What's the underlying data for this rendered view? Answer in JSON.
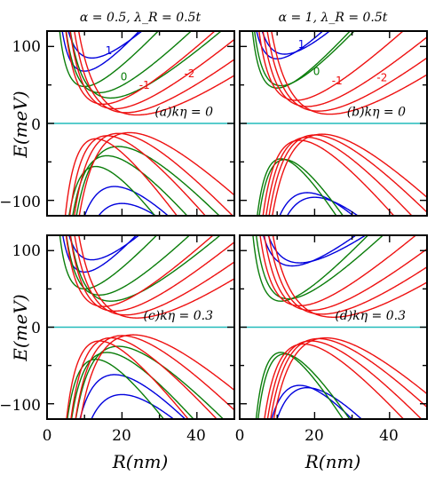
{
  "colors": {
    "blue": "#0000dd",
    "green": "#0a7d0a",
    "red": "#ee1111",
    "cyan": "#22bbbb"
  },
  "axes": {
    "ylabel": "E(meV)",
    "xlabel": "R(nm)",
    "xticks": [
      "0",
      "20",
      "40"
    ],
    "yticks": [
      "100",
      "0",
      "−100"
    ]
  },
  "chart_data": [
    {
      "type": "line",
      "title": "α = 0.5, λ_R = 0.5t",
      "panel_label": "(a)kη = 0",
      "xlim": [
        0,
        50
      ],
      "ylim": [
        -120,
        120
      ],
      "annotations": [
        {
          "text": "1",
          "color": "blue",
          "x": 16.5,
          "y": 90
        },
        {
          "text": "0",
          "color": "green",
          "x": 20.5,
          "y": 56
        },
        {
          "text": "-1",
          "color": "red",
          "x": 26,
          "y": 45
        },
        {
          "text": "-2",
          "color": "red",
          "x": 38,
          "y": 60
        }
      ],
      "series": [
        {
          "color": "blue",
          "x0": 10,
          "min": 68,
          "scale": 5.0,
          "kind": "upper"
        },
        {
          "color": "blue",
          "x0": 12,
          "min": 85,
          "scale": 5.0,
          "kind": "upper"
        },
        {
          "color": "green",
          "x0": 10,
          "min": 48,
          "scale": 4.6,
          "kind": "upper"
        },
        {
          "color": "green",
          "x0": 14,
          "min": 40,
          "scale": 6.0,
          "kind": "upper"
        },
        {
          "color": "green",
          "x0": 17,
          "min": 33,
          "scale": 6.6,
          "kind": "upper"
        },
        {
          "color": "red",
          "x0": 15,
          "min": 25,
          "scale": 6.0,
          "kind": "upper"
        },
        {
          "color": "red",
          "x0": 18,
          "min": 19,
          "scale": 6.6,
          "kind": "upper"
        },
        {
          "color": "red",
          "x0": 21,
          "min": 14,
          "scale": 7.2,
          "kind": "upper"
        },
        {
          "color": "red",
          "x0": 24,
          "min": 11,
          "scale": 7.6,
          "kind": "upper"
        },
        {
          "color": "blue",
          "x0": 18,
          "min": -82,
          "scale": 9.0,
          "kind": "lower"
        },
        {
          "color": "blue",
          "x0": 20,
          "min": -104,
          "scale": 9.5,
          "kind": "lower"
        },
        {
          "color": "green",
          "x0": 13,
          "min": -56,
          "scale": 8.0,
          "kind": "lower"
        },
        {
          "color": "green",
          "x0": 16,
          "min": -42,
          "scale": 8.5,
          "kind": "lower"
        },
        {
          "color": "green",
          "x0": 19,
          "min": -30,
          "scale": 9.0,
          "kind": "lower"
        },
        {
          "color": "red",
          "x0": 13,
          "min": -20,
          "scale": 8.0,
          "kind": "lower"
        },
        {
          "color": "red",
          "x0": 16,
          "min": -16,
          "scale": 8.5,
          "kind": "lower"
        },
        {
          "color": "red",
          "x0": 19,
          "min": -13,
          "scale": 9.0,
          "kind": "lower"
        },
        {
          "color": "red",
          "x0": 22,
          "min": -12,
          "scale": 9.5,
          "kind": "lower"
        }
      ]
    },
    {
      "type": "line",
      "title": "α = 1, λ_R = 0.5t",
      "panel_label": "(b)kη = 0",
      "xlim": [
        0,
        50
      ],
      "ylim": [
        -120,
        120
      ],
      "annotations": [
        {
          "text": "1",
          "color": "blue",
          "x": 16.5,
          "y": 98
        },
        {
          "text": "0",
          "color": "green",
          "x": 20.5,
          "y": 63
        },
        {
          "text": "-1",
          "color": "red",
          "x": 26,
          "y": 51
        },
        {
          "text": "-2",
          "color": "red",
          "x": 38,
          "y": 55
        }
      ],
      "series": [
        {
          "color": "blue",
          "x0": 10,
          "min": 84,
          "scale": 4.5,
          "kind": "upper"
        },
        {
          "color": "blue",
          "x0": 12,
          "min": 90,
          "scale": 5.0,
          "kind": "upper"
        },
        {
          "color": "green",
          "x0": 10,
          "min": 46,
          "scale": 4.8,
          "kind": "upper"
        },
        {
          "color": "green",
          "x0": 11,
          "min": 49,
          "scale": 5.2,
          "kind": "upper"
        },
        {
          "color": "red",
          "x0": 15,
          "min": 30,
          "scale": 6.0,
          "kind": "upper"
        },
        {
          "color": "red",
          "x0": 18,
          "min": 22,
          "scale": 6.6,
          "kind": "upper"
        },
        {
          "color": "red",
          "x0": 21,
          "min": 16,
          "scale": 7.2,
          "kind": "upper"
        },
        {
          "color": "red",
          "x0": 24,
          "min": 12,
          "scale": 7.6,
          "kind": "upper"
        },
        {
          "color": "blue",
          "x0": 18,
          "min": -90,
          "scale": 9.0,
          "kind": "lower"
        },
        {
          "color": "blue",
          "x0": 20,
          "min": -96,
          "scale": 9.5,
          "kind": "lower"
        },
        {
          "color": "green",
          "x0": 11,
          "min": -46,
          "scale": 8.0,
          "kind": "lower"
        },
        {
          "color": "green",
          "x0": 12,
          "min": -47,
          "scale": 8.3,
          "kind": "lower"
        },
        {
          "color": "red",
          "x0": 16,
          "min": -22,
          "scale": 8.5,
          "kind": "lower"
        },
        {
          "color": "red",
          "x0": 18,
          "min": -18,
          "scale": 9.0,
          "kind": "lower"
        },
        {
          "color": "red",
          "x0": 20,
          "min": -15,
          "scale": 9.3,
          "kind": "lower"
        },
        {
          "color": "red",
          "x0": 22,
          "min": -14,
          "scale": 9.6,
          "kind": "lower"
        }
      ]
    },
    {
      "type": "line",
      "title": "",
      "panel_label": "(c)kη = 0.3",
      "xlim": [
        0,
        50
      ],
      "ylim": [
        -120,
        120
      ],
      "annotations": [],
      "series": [
        {
          "color": "blue",
          "x0": 10,
          "min": 72,
          "scale": 5.0,
          "kind": "upper"
        },
        {
          "color": "blue",
          "x0": 12,
          "min": 88,
          "scale": 5.0,
          "kind": "upper"
        },
        {
          "color": "green",
          "x0": 10,
          "min": 50,
          "scale": 4.6,
          "kind": "upper"
        },
        {
          "color": "green",
          "x0": 14,
          "min": 42,
          "scale": 6.0,
          "kind": "upper"
        },
        {
          "color": "green",
          "x0": 17,
          "min": 34,
          "scale": 6.6,
          "kind": "upper"
        },
        {
          "color": "red",
          "x0": 15,
          "min": 27,
          "scale": 6.0,
          "kind": "upper"
        },
        {
          "color": "red",
          "x0": 18,
          "min": 21,
          "scale": 6.6,
          "kind": "upper"
        },
        {
          "color": "red",
          "x0": 21,
          "min": 16,
          "scale": 7.2,
          "kind": "upper"
        },
        {
          "color": "red",
          "x0": 24,
          "min": 12,
          "scale": 7.6,
          "kind": "upper"
        },
        {
          "color": "blue",
          "x0": 18,
          "min": -62,
          "scale": 9.0,
          "kind": "lower"
        },
        {
          "color": "blue",
          "x0": 20,
          "min": -88,
          "scale": 9.5,
          "kind": "lower"
        },
        {
          "color": "green",
          "x0": 13,
          "min": -42,
          "scale": 8.0,
          "kind": "lower"
        },
        {
          "color": "green",
          "x0": 16,
          "min": -33,
          "scale": 8.5,
          "kind": "lower"
        },
        {
          "color": "green",
          "x0": 19,
          "min": -25,
          "scale": 9.0,
          "kind": "lower"
        },
        {
          "color": "red",
          "x0": 14,
          "min": -18,
          "scale": 8.0,
          "kind": "lower"
        },
        {
          "color": "red",
          "x0": 17,
          "min": -14,
          "scale": 8.5,
          "kind": "lower"
        },
        {
          "color": "red",
          "x0": 20,
          "min": -11,
          "scale": 9.0,
          "kind": "lower"
        },
        {
          "color": "red",
          "x0": 23,
          "min": -10,
          "scale": 9.5,
          "kind": "lower"
        }
      ]
    },
    {
      "type": "line",
      "title": "",
      "panel_label": "(d)kη = 0.3",
      "xlim": [
        0,
        50
      ],
      "ylim": [
        -120,
        120
      ],
      "annotations": [],
      "series": [
        {
          "color": "blue",
          "x0": 14,
          "min": 80,
          "scale": 5.0,
          "kind": "upper"
        },
        {
          "color": "blue",
          "x0": 16,
          "min": 84,
          "scale": 5.2,
          "kind": "upper"
        },
        {
          "color": "green",
          "x0": 11,
          "min": 34,
          "scale": 5.0,
          "kind": "upper"
        },
        {
          "color": "green",
          "x0": 13,
          "min": 37,
          "scale": 5.4,
          "kind": "upper"
        },
        {
          "color": "red",
          "x0": 16,
          "min": 28,
          "scale": 6.0,
          "kind": "upper"
        },
        {
          "color": "red",
          "x0": 19,
          "min": 22,
          "scale": 6.6,
          "kind": "upper"
        },
        {
          "color": "red",
          "x0": 22,
          "min": 17,
          "scale": 7.2,
          "kind": "upper"
        },
        {
          "color": "red",
          "x0": 25,
          "min": 13,
          "scale": 7.6,
          "kind": "upper"
        },
        {
          "color": "blue",
          "x0": 16,
          "min": -76,
          "scale": 9.0,
          "kind": "lower"
        },
        {
          "color": "blue",
          "x0": 18,
          "min": -79,
          "scale": 9.5,
          "kind": "lower"
        },
        {
          "color": "green",
          "x0": 11,
          "min": -33,
          "scale": 8.0,
          "kind": "lower"
        },
        {
          "color": "green",
          "x0": 12,
          "min": -35,
          "scale": 8.3,
          "kind": "lower"
        },
        {
          "color": "red",
          "x0": 17,
          "min": -22,
          "scale": 8.5,
          "kind": "lower"
        },
        {
          "color": "red",
          "x0": 19,
          "min": -18,
          "scale": 9.0,
          "kind": "lower"
        },
        {
          "color": "red",
          "x0": 21,
          "min": -15,
          "scale": 9.3,
          "kind": "lower"
        },
        {
          "color": "red",
          "x0": 23,
          "min": -14,
          "scale": 9.6,
          "kind": "lower"
        }
      ]
    }
  ]
}
